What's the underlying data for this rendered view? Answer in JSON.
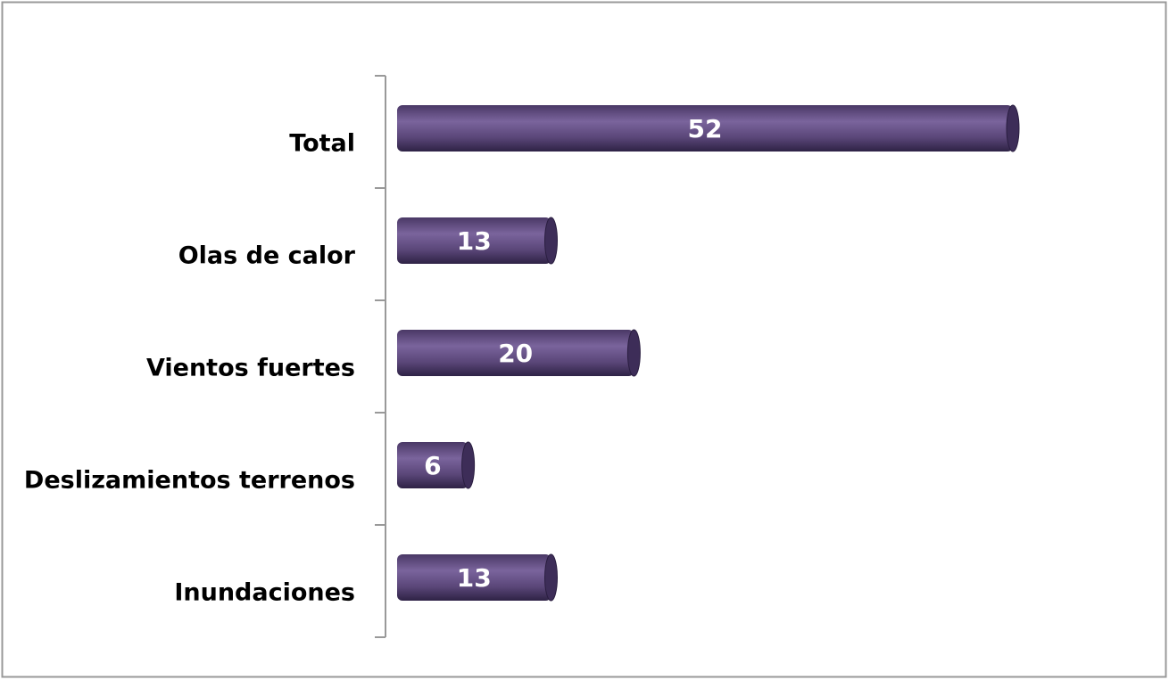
{
  "chart_data": {
    "type": "bar",
    "orientation": "horizontal",
    "categories": [
      "Total",
      "Olas de calor",
      "Vientos fuertes",
      "Deslizamientos terrenos",
      "Inundaciones"
    ],
    "values": [
      52,
      13,
      20,
      6,
      13
    ],
    "color": "#5e4a80"
  }
}
